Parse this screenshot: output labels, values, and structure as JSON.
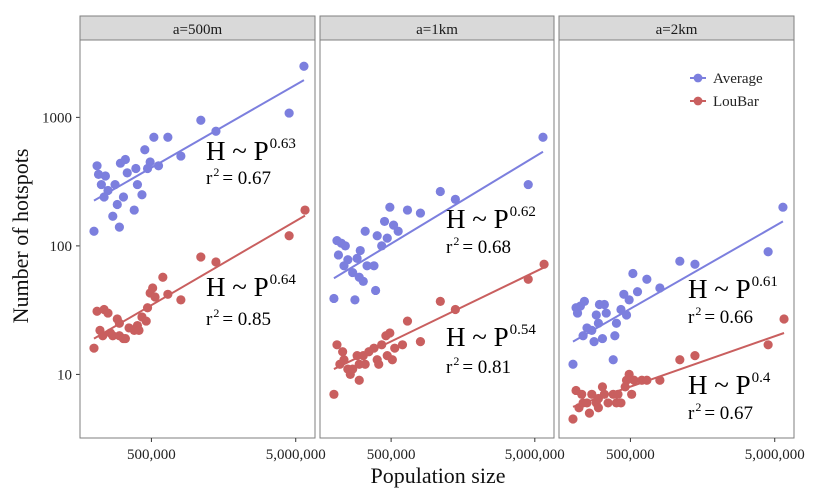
{
  "chart_data": {
    "type": "scatter",
    "facet_variable": "a",
    "xlabel": "Population size",
    "ylabel": "Number of hotspots",
    "xscale": "log",
    "yscale": "log",
    "xlim": [
      160000,
      6800000
    ],
    "ylim": [
      3.2,
      4000
    ],
    "x_ticks": [
      500000,
      5000000
    ],
    "x_tick_labels": [
      "500,000",
      "5,000,000"
    ],
    "y_ticks": [
      10,
      100,
      1000
    ],
    "y_tick_labels": [
      "10",
      "100",
      "1000"
    ],
    "legend": {
      "position": "top-right",
      "entries": [
        {
          "name": "Average",
          "color": "#7c7fde"
        },
        {
          "name": "LouBar",
          "color": "#c95f5f"
        }
      ]
    },
    "panels": [
      {
        "label": "a=500m",
        "series": [
          {
            "name": "Average",
            "color": "#7c7fde",
            "points": [
              [
                200000,
                130
              ],
              [
                210000,
                420
              ],
              [
                215000,
                360
              ],
              [
                225000,
                300
              ],
              [
                235000,
                240
              ],
              [
                240000,
                350
              ],
              [
                250000,
                270
              ],
              [
                270000,
                170
              ],
              [
                280000,
                300
              ],
              [
                290000,
                210
              ],
              [
                300000,
                140
              ],
              [
                305000,
                440
              ],
              [
                320000,
                240
              ],
              [
                330000,
                470
              ],
              [
                340000,
                370
              ],
              [
                380000,
                190
              ],
              [
                390000,
                400
              ],
              [
                400000,
                300
              ],
              [
                430000,
                250
              ],
              [
                450000,
                560
              ],
              [
                470000,
                400
              ],
              [
                490000,
                450
              ],
              [
                520000,
                700
              ],
              [
                560000,
                420
              ],
              [
                650000,
                700
              ],
              [
                800000,
                500
              ],
              [
                1100000,
                950
              ],
              [
                1400000,
                780
              ],
              [
                4500000,
                1080
              ],
              [
                5700000,
                2500
              ]
            ],
            "fit": {
              "x": [
                200000,
                5700000
              ],
              "y": [
                225,
                1950
              ]
            },
            "equation": "H ~ P",
            "exponent": "0.63",
            "r2": "0.67"
          },
          {
            "name": "LouBar",
            "color": "#c95f5f",
            "points": [
              [
                200000,
                16
              ],
              [
                210000,
                31
              ],
              [
                220000,
                22
              ],
              [
                230000,
                20
              ],
              [
                235000,
                32
              ],
              [
                250000,
                30
              ],
              [
                260000,
                21
              ],
              [
                270000,
                20
              ],
              [
                290000,
                27
              ],
              [
                300000,
                25
              ],
              [
                300000,
                20
              ],
              [
                320000,
                19
              ],
              [
                330000,
                19
              ],
              [
                350000,
                23
              ],
              [
                380000,
                22
              ],
              [
                400000,
                24
              ],
              [
                410000,
                22
              ],
              [
                430000,
                28
              ],
              [
                460000,
                26
              ],
              [
                470000,
                33
              ],
              [
                490000,
                43
              ],
              [
                510000,
                47
              ],
              [
                530000,
                40
              ],
              [
                600000,
                57
              ],
              [
                650000,
                42
              ],
              [
                800000,
                38
              ],
              [
                1100000,
                82
              ],
              [
                1400000,
                75
              ],
              [
                4500000,
                120
              ],
              [
                5800000,
                190
              ]
            ],
            "fit": {
              "x": [
                200000,
                5800000
              ],
              "y": [
                19,
                172
              ]
            },
            "equation": "H ~ P",
            "exponent": "0.64",
            "r2": "0.85"
          }
        ]
      },
      {
        "label": "a=1km",
        "series": [
          {
            "name": "Average",
            "color": "#7c7fde",
            "points": [
              [
                200000,
                39
              ],
              [
                210000,
                110
              ],
              [
                215000,
                85
              ],
              [
                225000,
                105
              ],
              [
                235000,
                70
              ],
              [
                240000,
                100
              ],
              [
                250000,
                78
              ],
              [
                270000,
                62
              ],
              [
                280000,
                38
              ],
              [
                290000,
                80
              ],
              [
                300000,
                57
              ],
              [
                305000,
                92
              ],
              [
                320000,
                53
              ],
              [
                330000,
                130
              ],
              [
                340000,
                70
              ],
              [
                380000,
                70
              ],
              [
                390000,
                45
              ],
              [
                400000,
                120
              ],
              [
                430000,
                100
              ],
              [
                450000,
                155
              ],
              [
                470000,
                115
              ],
              [
                490000,
                200
              ],
              [
                520000,
                145
              ],
              [
                560000,
                130
              ],
              [
                650000,
                190
              ],
              [
                800000,
                180
              ],
              [
                1100000,
                265
              ],
              [
                1400000,
                230
              ],
              [
                4500000,
                300
              ],
              [
                5700000,
                700
              ]
            ],
            "fit": {
              "x": [
                200000,
                5700000
              ],
              "y": [
                56,
                540
              ]
            },
            "equation": "H ~ P",
            "exponent": "0.62",
            "r2": "0.68"
          },
          {
            "name": "LouBar",
            "color": "#c95f5f",
            "points": [
              [
                200000,
                7
              ],
              [
                210000,
                17
              ],
              [
                220000,
                12
              ],
              [
                230000,
                15
              ],
              [
                235000,
                13
              ],
              [
                250000,
                11
              ],
              [
                260000,
                10
              ],
              [
                270000,
                11
              ],
              [
                290000,
                14
              ],
              [
                300000,
                12
              ],
              [
                300000,
                9
              ],
              [
                320000,
                14
              ],
              [
                330000,
                12
              ],
              [
                350000,
                15
              ],
              [
                380000,
                16
              ],
              [
                400000,
                13
              ],
              [
                410000,
                12
              ],
              [
                430000,
                17
              ],
              [
                460000,
                20
              ],
              [
                470000,
                14
              ],
              [
                490000,
                21
              ],
              [
                510000,
                13
              ],
              [
                530000,
                16
              ],
              [
                600000,
                17
              ],
              [
                650000,
                26
              ],
              [
                800000,
                18
              ],
              [
                1100000,
                37
              ],
              [
                1400000,
                32
              ],
              [
                4500000,
                55
              ],
              [
                5800000,
                72
              ]
            ],
            "fit": {
              "x": [
                200000,
                5800000
              ],
              "y": [
                11,
                68
              ]
            },
            "equation": "H ~ P",
            "exponent": "0.54",
            "r2": "0.81"
          }
        ]
      },
      {
        "label": "a=2km",
        "series": [
          {
            "name": "Average",
            "color": "#7c7fde",
            "points": [
              [
                200000,
                12
              ],
              [
                210000,
                33
              ],
              [
                215000,
                30
              ],
              [
                225000,
                34
              ],
              [
                235000,
                20
              ],
              [
                240000,
                37
              ],
              [
                250000,
                23
              ],
              [
                270000,
                22
              ],
              [
                280000,
                18
              ],
              [
                290000,
                29
              ],
              [
                300000,
                25
              ],
              [
                305000,
                35
              ],
              [
                320000,
                19
              ],
              [
                330000,
                35
              ],
              [
                340000,
                30
              ],
              [
                380000,
                13
              ],
              [
                390000,
                20
              ],
              [
                400000,
                25
              ],
              [
                430000,
                32
              ],
              [
                450000,
                42
              ],
              [
                470000,
                29
              ],
              [
                490000,
                38
              ],
              [
                520000,
                61
              ],
              [
                560000,
                44
              ],
              [
                650000,
                55
              ],
              [
                800000,
                47
              ],
              [
                1100000,
                76
              ],
              [
                1400000,
                72
              ],
              [
                4500000,
                90
              ],
              [
                5700000,
                200
              ]
            ],
            "fit": {
              "x": [
                200000,
                5700000
              ],
              "y": [
                18,
                155
              ]
            },
            "equation": "H ~ P",
            "exponent": "0.61",
            "r2": "0.66"
          },
          {
            "name": "LouBar",
            "color": "#c95f5f",
            "points": [
              [
                200000,
                4.5
              ],
              [
                210000,
                7.5
              ],
              [
                220000,
                5.5
              ],
              [
                230000,
                7
              ],
              [
                235000,
                6
              ],
              [
                250000,
                6
              ],
              [
                260000,
                5
              ],
              [
                270000,
                7
              ],
              [
                290000,
                6
              ],
              [
                300000,
                5.5
              ],
              [
                300000,
                6.5
              ],
              [
                320000,
                8
              ],
              [
                330000,
                7
              ],
              [
                350000,
                6
              ],
              [
                380000,
                7
              ],
              [
                400000,
                6
              ],
              [
                410000,
                7
              ],
              [
                430000,
                6
              ],
              [
                460000,
                8
              ],
              [
                470000,
                9
              ],
              [
                490000,
                10
              ],
              [
                510000,
                7
              ],
              [
                530000,
                9
              ],
              [
                600000,
                9
              ],
              [
                650000,
                9
              ],
              [
                800000,
                9
              ],
              [
                1100000,
                13
              ],
              [
                1400000,
                14
              ],
              [
                4500000,
                17
              ],
              [
                5800000,
                27
              ]
            ],
            "fit": {
              "x": [
                200000,
                5800000
              ],
              "y": [
                5.6,
                21
              ]
            },
            "equation": "H ~ P",
            "exponent": "0.4",
            "r2": "0.67"
          }
        ]
      }
    ]
  }
}
